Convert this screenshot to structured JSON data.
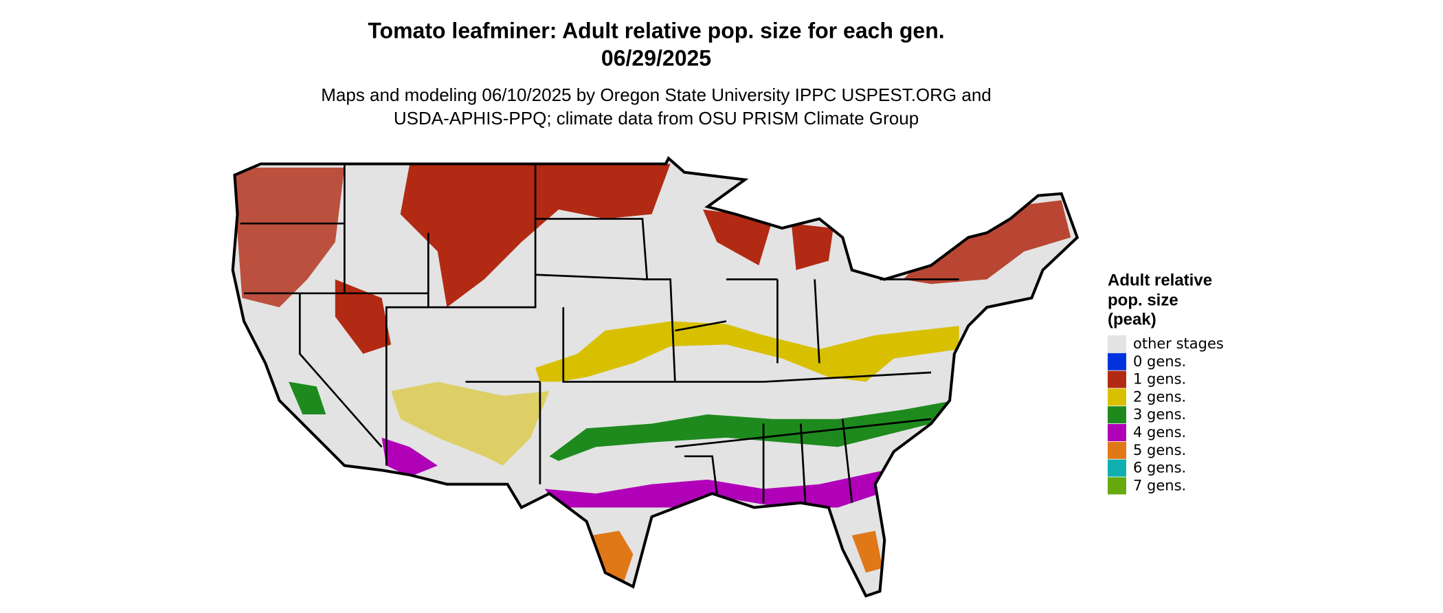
{
  "title": [
    "Tomato leafminer: Adult relative pop. size for each gen.",
    "06/29/2025"
  ],
  "subtitle": [
    "Maps and modeling 06/10/2025 by Oregon State University IPPC USPEST.ORG and",
    "USDA-APHIS-PPQ; climate data from OSU PRISM Climate Group"
  ],
  "legend": {
    "title": [
      "Adult relative",
      "pop. size",
      "(peak)"
    ],
    "items": [
      {
        "label": "other stages",
        "color": "#e3e3e3"
      },
      {
        "label": "0 gens.",
        "color": "#0033dd"
      },
      {
        "label": "1 gens.",
        "color": "#b22a14"
      },
      {
        "label": "2 gens.",
        "color": "#d8c000"
      },
      {
        "label": "3 gens.",
        "color": "#1e8a1e"
      },
      {
        "label": "4 gens.",
        "color": "#b000b8"
      },
      {
        "label": "5 gens.",
        "color": "#e07818"
      },
      {
        "label": "6 gens.",
        "color": "#10b0b0"
      },
      {
        "label": "7 gens.",
        "color": "#66aa10"
      }
    ]
  }
}
